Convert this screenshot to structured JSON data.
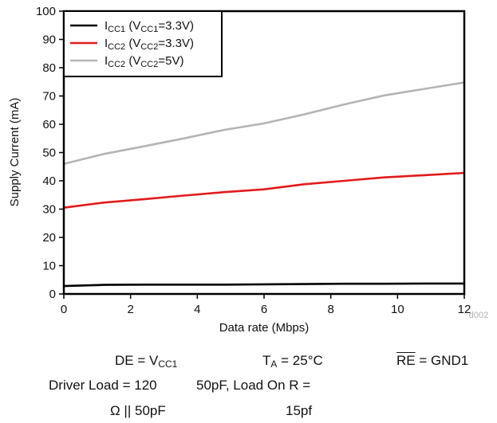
{
  "chart_data": {
    "type": "line",
    "xlabel": "Data rate (Mbps)",
    "ylabel": "Supply Current (mA)",
    "xlim": [
      0,
      12
    ],
    "ylim": [
      0,
      100
    ],
    "x_ticks": [
      "0",
      "2",
      "4",
      "6",
      "8",
      "10",
      "12"
    ],
    "y_ticks": [
      "0",
      "10",
      "20",
      "30",
      "40",
      "50",
      "60",
      "70",
      "80",
      "90",
      "100"
    ],
    "grid": false,
    "legend_position": "top-left",
    "figure_id": "d002",
    "series": [
      {
        "name": "ICC1 (VCC1=3.3V)",
        "legend_main": "I",
        "legend_sub1": "CC1",
        "legend_mid": " (V",
        "legend_sub2": "CC1",
        "legend_tail": "=3.3V)",
        "color": "#000000",
        "x": [
          0,
          1.2,
          2.4,
          3.6,
          4.8,
          6,
          7.2,
          8.4,
          9.6,
          10.8,
          12
        ],
        "y": [
          2.8,
          3.2,
          3.3,
          3.3,
          3.3,
          3.4,
          3.5,
          3.6,
          3.6,
          3.7,
          3.7
        ]
      },
      {
        "name": "ICC2 (VCC2=3.3V)",
        "legend_main": "I",
        "legend_sub1": "CC2",
        "legend_mid": " (V",
        "legend_sub2": "CC2",
        "legend_tail": "=3.3V)",
        "color": "#e31a1c",
        "x": [
          0,
          1.2,
          2.4,
          3.6,
          4.8,
          6,
          7.2,
          8.4,
          9.6,
          10.8,
          12
        ],
        "y": [
          30.5,
          32.3,
          33.5,
          34.8,
          36.0,
          37.0,
          38.8,
          40.0,
          41.2,
          42.0,
          42.8
        ]
      },
      {
        "name": "ICC2 (VCC2=5V)",
        "legend_main": "I",
        "legend_sub1": "CC2",
        "legend_mid": " (V",
        "legend_sub2": "CC2",
        "legend_tail": "=5V)",
        "color": "#b4b4b4",
        "x": [
          0,
          1.2,
          2.4,
          3.6,
          4.8,
          6,
          7.2,
          8.4,
          9.6,
          10.8,
          12
        ],
        "y": [
          46.0,
          49.5,
          52.2,
          55.0,
          58.0,
          60.3,
          63.5,
          67.0,
          70.2,
          72.5,
          74.8
        ]
      }
    ]
  },
  "conditions": {
    "de_prefix": "DE = V",
    "de_sub": "CC1",
    "ta_prefix": "T",
    "ta_sub": "A",
    "ta_suffix": " = 25°C",
    "re_label": "RE",
    "re_suffix": " = GND1",
    "load_line1_a": "Driver Load = 120",
    "load_line1_b": "50pF, Load On R =",
    "load_line2_a": "Ω || 50pF",
    "load_line2_b": "15pf"
  }
}
